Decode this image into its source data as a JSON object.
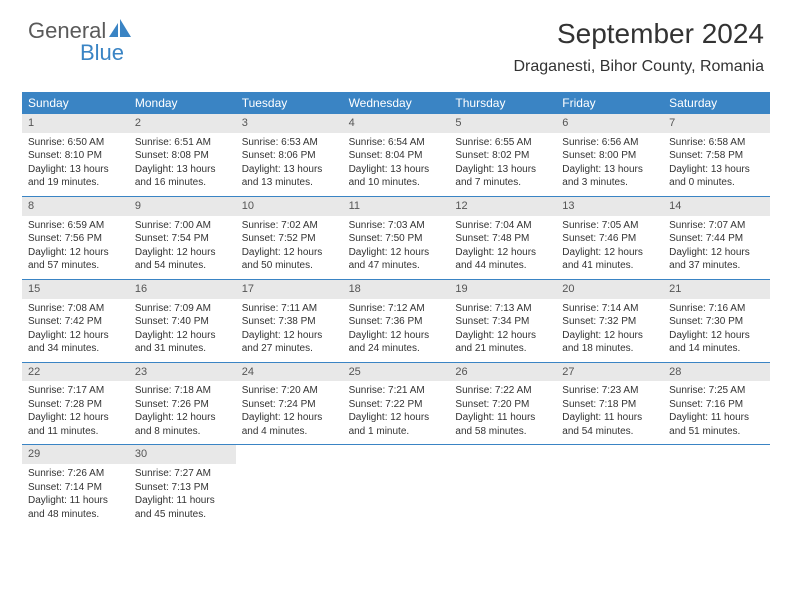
{
  "brand": {
    "part1": "General",
    "part2": "Blue"
  },
  "title": "September 2024",
  "location": "Draganesti, Bihor County, Romania",
  "colors": {
    "header_bg": "#3a84c4",
    "daynum_bg": "#e8e8e8",
    "text": "#333333",
    "brand_gray": "#5a5a5a",
    "brand_blue": "#3a84c4"
  },
  "day_headers": [
    "Sunday",
    "Monday",
    "Tuesday",
    "Wednesday",
    "Thursday",
    "Friday",
    "Saturday"
  ],
  "weeks": [
    [
      {
        "n": "1",
        "sr": "Sunrise: 6:50 AM",
        "ss": "Sunset: 8:10 PM",
        "d1": "Daylight: 13 hours",
        "d2": "and 19 minutes."
      },
      {
        "n": "2",
        "sr": "Sunrise: 6:51 AM",
        "ss": "Sunset: 8:08 PM",
        "d1": "Daylight: 13 hours",
        "d2": "and 16 minutes."
      },
      {
        "n": "3",
        "sr": "Sunrise: 6:53 AM",
        "ss": "Sunset: 8:06 PM",
        "d1": "Daylight: 13 hours",
        "d2": "and 13 minutes."
      },
      {
        "n": "4",
        "sr": "Sunrise: 6:54 AM",
        "ss": "Sunset: 8:04 PM",
        "d1": "Daylight: 13 hours",
        "d2": "and 10 minutes."
      },
      {
        "n": "5",
        "sr": "Sunrise: 6:55 AM",
        "ss": "Sunset: 8:02 PM",
        "d1": "Daylight: 13 hours",
        "d2": "and 7 minutes."
      },
      {
        "n": "6",
        "sr": "Sunrise: 6:56 AM",
        "ss": "Sunset: 8:00 PM",
        "d1": "Daylight: 13 hours",
        "d2": "and 3 minutes."
      },
      {
        "n": "7",
        "sr": "Sunrise: 6:58 AM",
        "ss": "Sunset: 7:58 PM",
        "d1": "Daylight: 13 hours",
        "d2": "and 0 minutes."
      }
    ],
    [
      {
        "n": "8",
        "sr": "Sunrise: 6:59 AM",
        "ss": "Sunset: 7:56 PM",
        "d1": "Daylight: 12 hours",
        "d2": "and 57 minutes."
      },
      {
        "n": "9",
        "sr": "Sunrise: 7:00 AM",
        "ss": "Sunset: 7:54 PM",
        "d1": "Daylight: 12 hours",
        "d2": "and 54 minutes."
      },
      {
        "n": "10",
        "sr": "Sunrise: 7:02 AM",
        "ss": "Sunset: 7:52 PM",
        "d1": "Daylight: 12 hours",
        "d2": "and 50 minutes."
      },
      {
        "n": "11",
        "sr": "Sunrise: 7:03 AM",
        "ss": "Sunset: 7:50 PM",
        "d1": "Daylight: 12 hours",
        "d2": "and 47 minutes."
      },
      {
        "n": "12",
        "sr": "Sunrise: 7:04 AM",
        "ss": "Sunset: 7:48 PM",
        "d1": "Daylight: 12 hours",
        "d2": "and 44 minutes."
      },
      {
        "n": "13",
        "sr": "Sunrise: 7:05 AM",
        "ss": "Sunset: 7:46 PM",
        "d1": "Daylight: 12 hours",
        "d2": "and 41 minutes."
      },
      {
        "n": "14",
        "sr": "Sunrise: 7:07 AM",
        "ss": "Sunset: 7:44 PM",
        "d1": "Daylight: 12 hours",
        "d2": "and 37 minutes."
      }
    ],
    [
      {
        "n": "15",
        "sr": "Sunrise: 7:08 AM",
        "ss": "Sunset: 7:42 PM",
        "d1": "Daylight: 12 hours",
        "d2": "and 34 minutes."
      },
      {
        "n": "16",
        "sr": "Sunrise: 7:09 AM",
        "ss": "Sunset: 7:40 PM",
        "d1": "Daylight: 12 hours",
        "d2": "and 31 minutes."
      },
      {
        "n": "17",
        "sr": "Sunrise: 7:11 AM",
        "ss": "Sunset: 7:38 PM",
        "d1": "Daylight: 12 hours",
        "d2": "and 27 minutes."
      },
      {
        "n": "18",
        "sr": "Sunrise: 7:12 AM",
        "ss": "Sunset: 7:36 PM",
        "d1": "Daylight: 12 hours",
        "d2": "and 24 minutes."
      },
      {
        "n": "19",
        "sr": "Sunrise: 7:13 AM",
        "ss": "Sunset: 7:34 PM",
        "d1": "Daylight: 12 hours",
        "d2": "and 21 minutes."
      },
      {
        "n": "20",
        "sr": "Sunrise: 7:14 AM",
        "ss": "Sunset: 7:32 PM",
        "d1": "Daylight: 12 hours",
        "d2": "and 18 minutes."
      },
      {
        "n": "21",
        "sr": "Sunrise: 7:16 AM",
        "ss": "Sunset: 7:30 PM",
        "d1": "Daylight: 12 hours",
        "d2": "and 14 minutes."
      }
    ],
    [
      {
        "n": "22",
        "sr": "Sunrise: 7:17 AM",
        "ss": "Sunset: 7:28 PM",
        "d1": "Daylight: 12 hours",
        "d2": "and 11 minutes."
      },
      {
        "n": "23",
        "sr": "Sunrise: 7:18 AM",
        "ss": "Sunset: 7:26 PM",
        "d1": "Daylight: 12 hours",
        "d2": "and 8 minutes."
      },
      {
        "n": "24",
        "sr": "Sunrise: 7:20 AM",
        "ss": "Sunset: 7:24 PM",
        "d1": "Daylight: 12 hours",
        "d2": "and 4 minutes."
      },
      {
        "n": "25",
        "sr": "Sunrise: 7:21 AM",
        "ss": "Sunset: 7:22 PM",
        "d1": "Daylight: 12 hours",
        "d2": "and 1 minute."
      },
      {
        "n": "26",
        "sr": "Sunrise: 7:22 AM",
        "ss": "Sunset: 7:20 PM",
        "d1": "Daylight: 11 hours",
        "d2": "and 58 minutes."
      },
      {
        "n": "27",
        "sr": "Sunrise: 7:23 AM",
        "ss": "Sunset: 7:18 PM",
        "d1": "Daylight: 11 hours",
        "d2": "and 54 minutes."
      },
      {
        "n": "28",
        "sr": "Sunrise: 7:25 AM",
        "ss": "Sunset: 7:16 PM",
        "d1": "Daylight: 11 hours",
        "d2": "and 51 minutes."
      }
    ],
    [
      {
        "n": "29",
        "sr": "Sunrise: 7:26 AM",
        "ss": "Sunset: 7:14 PM",
        "d1": "Daylight: 11 hours",
        "d2": "and 48 minutes."
      },
      {
        "n": "30",
        "sr": "Sunrise: 7:27 AM",
        "ss": "Sunset: 7:13 PM",
        "d1": "Daylight: 11 hours",
        "d2": "and 45 minutes."
      },
      {
        "empty": true
      },
      {
        "empty": true
      },
      {
        "empty": true
      },
      {
        "empty": true
      },
      {
        "empty": true
      }
    ]
  ]
}
